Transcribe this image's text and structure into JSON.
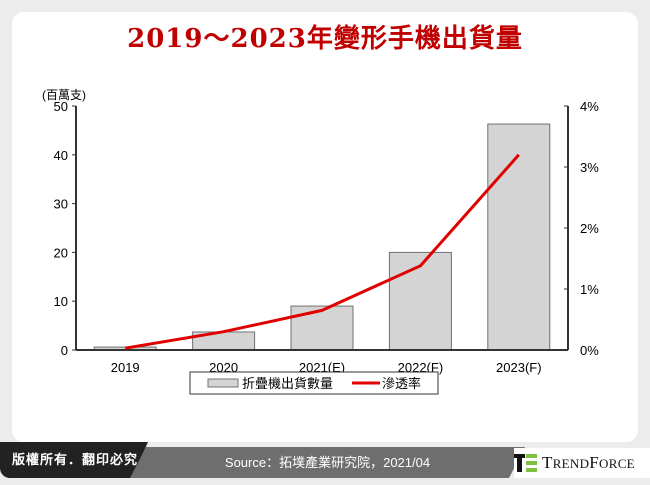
{
  "title": "2019～2023年變形手機出貨量",
  "unit_label": "(百萬支)",
  "footer": {
    "copyright": "版權所有．翻印必究",
    "source": "Source：拓墣產業研究院，2021/04",
    "logo_text": "TrendForce",
    "logo_icon": "trendforce-logo-icon"
  },
  "colors": {
    "title": "#c00000",
    "bar_fill": "#d4d4d4",
    "bar_stroke": "#707070",
    "line": "#e00000"
  },
  "chart_data": {
    "type": "bar+line",
    "title": "2019～2023年變形手機出貨量",
    "categories": [
      "2019",
      "2020",
      "2021(E)",
      "2022(F)",
      "2023(F)"
    ],
    "series": [
      {
        "name": "折疊機出貨數量",
        "type": "bar",
        "axis": "left",
        "values": [
          0.6,
          3.7,
          9.0,
          20.0,
          46.3
        ]
      },
      {
        "name": "滲透率",
        "type": "line",
        "axis": "right",
        "values": [
          0.03,
          0.3,
          0.65,
          1.38,
          3.2
        ]
      }
    ],
    "ylabel": "(百萬支)",
    "ylim": [
      0,
      50
    ],
    "yticks": [
      "0",
      "10",
      "20",
      "30",
      "40",
      "50"
    ],
    "y2lim": [
      0,
      4
    ],
    "y2ticks": [
      "0%",
      "1%",
      "2%",
      "3%",
      "4%"
    ],
    "legend_position": "bottom",
    "grid": false
  }
}
